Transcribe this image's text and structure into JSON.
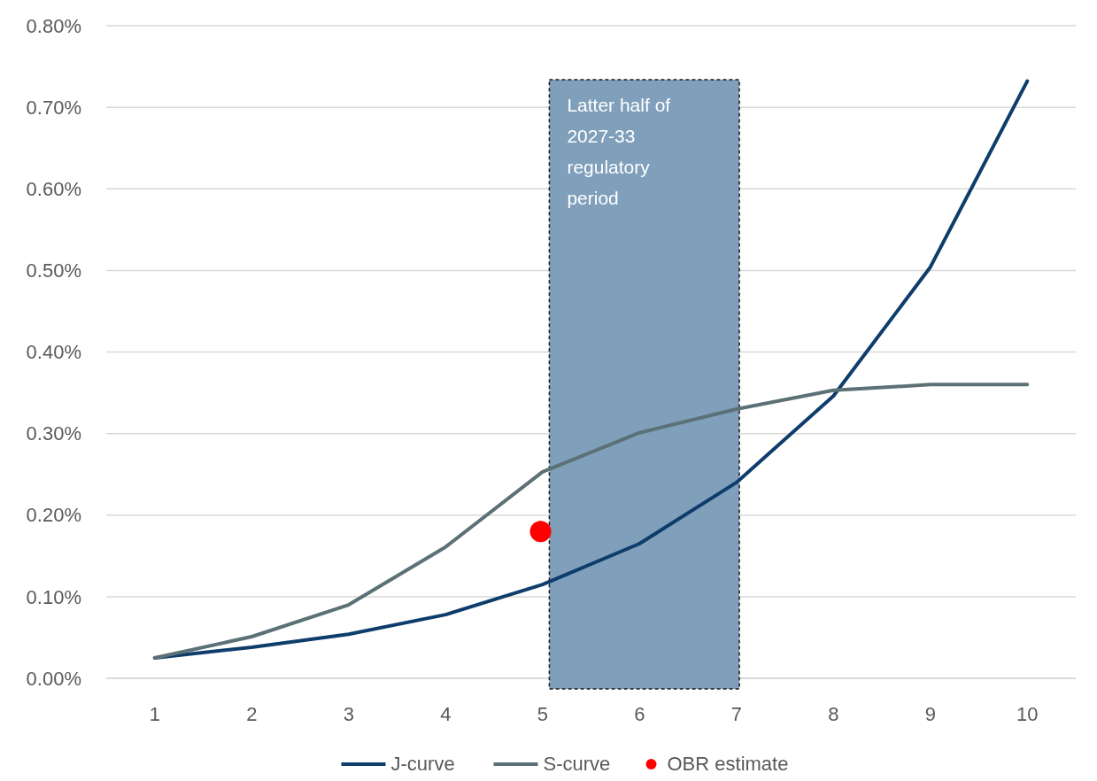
{
  "chart_data": {
    "type": "line",
    "x": [
      1,
      2,
      3,
      4,
      5,
      6,
      7,
      8,
      9,
      10
    ],
    "xlim": [
      0.5,
      10.5
    ],
    "xticks": [
      1,
      2,
      3,
      4,
      5,
      6,
      7,
      8,
      9,
      10
    ],
    "ylim": [
      0,
      0.8
    ],
    "yticks": [
      {
        "value": 0,
        "label": "0.00%"
      },
      {
        "value": 0.1,
        "label": "0.10%"
      },
      {
        "value": 0.2,
        "label": "0.20%"
      },
      {
        "value": 0.3,
        "label": "0.30%"
      },
      {
        "value": 0.4,
        "label": "0.40%"
      },
      {
        "value": 0.5,
        "label": "0.50%"
      },
      {
        "value": 0.6,
        "label": "0.60%"
      },
      {
        "value": 0.7,
        "label": "0.70%"
      },
      {
        "value": 0.8,
        "label": "0.80%"
      }
    ],
    "grid": "y",
    "legend": "bottom",
    "line_style": "solid",
    "series": [
      {
        "name": "J-curve",
        "color": "#0e3d6b",
        "values": [
          0.025,
          0.038,
          0.054,
          0.078,
          0.115,
          0.165,
          0.24,
          0.346,
          0.504,
          0.732
        ]
      },
      {
        "name": "S-curve",
        "color": "#5b7176",
        "values": [
          0.025,
          0.051,
          0.09,
          0.161,
          0.253,
          0.301,
          0.33,
          0.353,
          0.36,
          0.36
        ]
      },
      {
        "name": "OBR estimate",
        "type": "scatter",
        "marker": "circle",
        "color": "#ff0000",
        "x": [
          4.98
        ],
        "values": [
          0.18
        ]
      }
    ],
    "bands": [
      {
        "axis": "x",
        "from": 5.07,
        "to": 7.03,
        "label": "Latter half of 2027-33 regulatory period",
        "color": "#7f9fbb"
      }
    ]
  }
}
